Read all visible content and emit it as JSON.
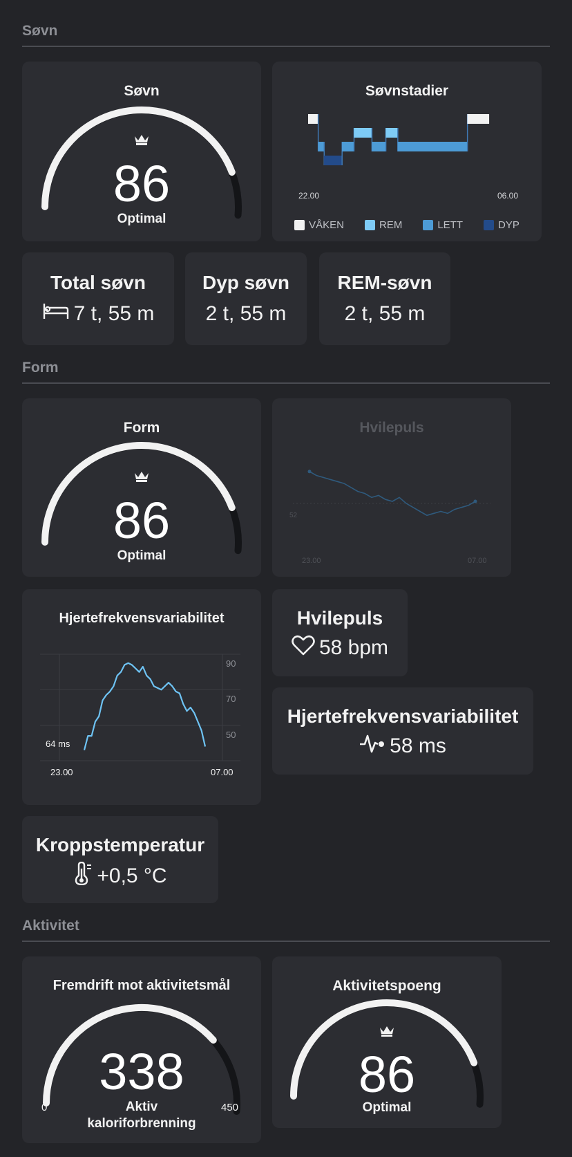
{
  "sections": {
    "sleep": "Søvn",
    "form": "Form",
    "activity": "Aktivitet"
  },
  "sleep_score": {
    "title": "Søvn",
    "value": "86",
    "caption": "Optimal",
    "fraction": 0.86,
    "crown_icon": "crown-icon"
  },
  "sleep_stages": {
    "title": "Søvnstadier",
    "start_label": "22.00",
    "end_label": "06.00",
    "legend": [
      {
        "label": "VÅKEN",
        "color": "#f2f2f2"
      },
      {
        "label": "REM",
        "color": "#7ecbf6"
      },
      {
        "label": "LETT",
        "color": "#4d9bd6"
      },
      {
        "label": "DYP",
        "color": "#234b8a"
      }
    ],
    "stages": [
      "VÅKEN",
      "LETT",
      "DYP",
      "LETT",
      "REM",
      "LETT",
      "REM",
      "LETT",
      "VÅKEN"
    ],
    "segment_fractions": [
      0.05,
      0.03,
      0.09,
      0.06,
      0.09,
      0.07,
      0.06,
      0.35,
      0.11
    ]
  },
  "stats_sleep": [
    {
      "title": "Total søvn",
      "value": "7 t, 55 m",
      "icon": "bed-icon"
    },
    {
      "title": "Dyp søvn",
      "value": "2 t, 55 m"
    },
    {
      "title": "REM-søvn",
      "value": "2 t, 55 m"
    }
  ],
  "form_score": {
    "title": "Form",
    "value": "86",
    "caption": "Optimal",
    "fraction": 0.86,
    "crown_icon": "crown-icon"
  },
  "resting_hr_chart": {
    "title": "Hvilepuls",
    "baseline_label": "52",
    "start_label": "23.00",
    "end_label": "07.00",
    "values": [
      68,
      66,
      65,
      64,
      63,
      62,
      60,
      58,
      57,
      55,
      56,
      54,
      53,
      55,
      52,
      50,
      48,
      46,
      47,
      48,
      47,
      49,
      50,
      51,
      53
    ]
  },
  "hrv_chart": {
    "title": "Hjertefrekvensvariabilitet",
    "y_ticks": [
      "90",
      "70",
      "50"
    ],
    "current_label": "64 ms",
    "start_label": "23.00",
    "end_label": "07.00",
    "ylim": [
      30,
      90
    ],
    "values": [
      36,
      44,
      44,
      52,
      55,
      64,
      67,
      69,
      72,
      78,
      80,
      84,
      85,
      84,
      82,
      80,
      83,
      78,
      76,
      72,
      71,
      70,
      72,
      74,
      72,
      69,
      68,
      62,
      58,
      60,
      57,
      52,
      47,
      38
    ]
  },
  "hr_stat": {
    "title": "Hvilepuls",
    "value": "58 bpm",
    "icon": "heart-icon"
  },
  "hrv_stat": {
    "title": "Hjertefrekvensvariabilitet",
    "value": "58 ms",
    "icon": "pulse-icon"
  },
  "temp_stat": {
    "title": "Kroppstemperatur",
    "value": "+0,5 °C",
    "icon": "thermometer-icon"
  },
  "activity_goal": {
    "title": "Fremdrift mot aktivitetsmål",
    "value": "338",
    "caption_line1": "Aktiv",
    "caption_line2": "kaloriforbrenning",
    "min_label": "0",
    "max_label": "450",
    "fraction": 0.75
  },
  "activity_score": {
    "title": "Aktivitetspoeng",
    "value": "86",
    "caption": "Optimal",
    "fraction": 0.86,
    "crown_icon": "crown-icon"
  },
  "colors": {
    "background": "#232428",
    "card": "#2c2d32",
    "gauge_fill": "#f2f2f2",
    "gauge_track": "#141518",
    "chart_line": "#6ec3f4"
  }
}
